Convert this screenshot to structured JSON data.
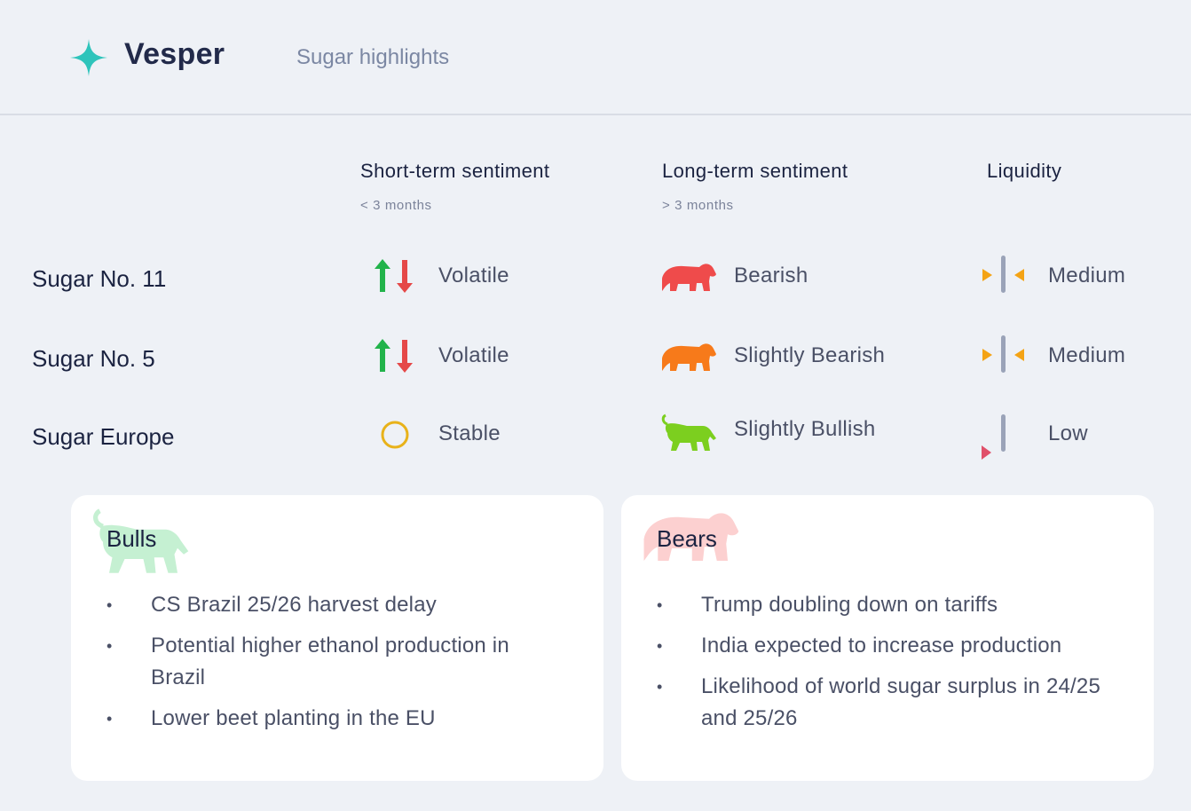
{
  "app": {
    "brand": "Vesper",
    "page_title": "Sugar highlights"
  },
  "columns": {
    "short_term": {
      "title": "Short-term sentiment",
      "sub": "< 3 months"
    },
    "long_term": {
      "title": "Long-term sentiment",
      "sub": "> 3 months"
    },
    "liquidity": {
      "title": "Liquidity"
    }
  },
  "rows": [
    {
      "name": "Sugar No. 11",
      "short": "Volatile",
      "long": "Bearish",
      "liquidity": "Medium"
    },
    {
      "name": "Sugar No. 5",
      "short": "Volatile",
      "long": "Slightly Bearish",
      "liquidity": "Medium"
    },
    {
      "name": "Sugar Europe",
      "short": "Stable",
      "long": "Slightly Bullish",
      "liquidity": "Low"
    }
  ],
  "bulls": {
    "title": "Bulls",
    "items": [
      "CS Brazil 25/26 harvest delay",
      "Potential higher ethanol production in Brazil",
      "Lower beet planting in the EU"
    ]
  },
  "bears": {
    "title": "Bears",
    "items": [
      "Trump doubling down on tariffs",
      "India expected to increase production",
      "Likelihood of world sugar surplus in 24/25 and 25/26"
    ]
  },
  "bullet_glyph": "•",
  "colors": {
    "accent": "#2ec4bb",
    "up": "#22b34b",
    "down": "#e54848",
    "bearish": "#ef4b4b",
    "slightly_bearish": "#f77a1a",
    "slightly_bullish": "#7ccf1f",
    "liquidity_marker": "#f4a315",
    "liquidity_low": "#e0506a",
    "liquidity_bar": "#9aa3b8"
  }
}
